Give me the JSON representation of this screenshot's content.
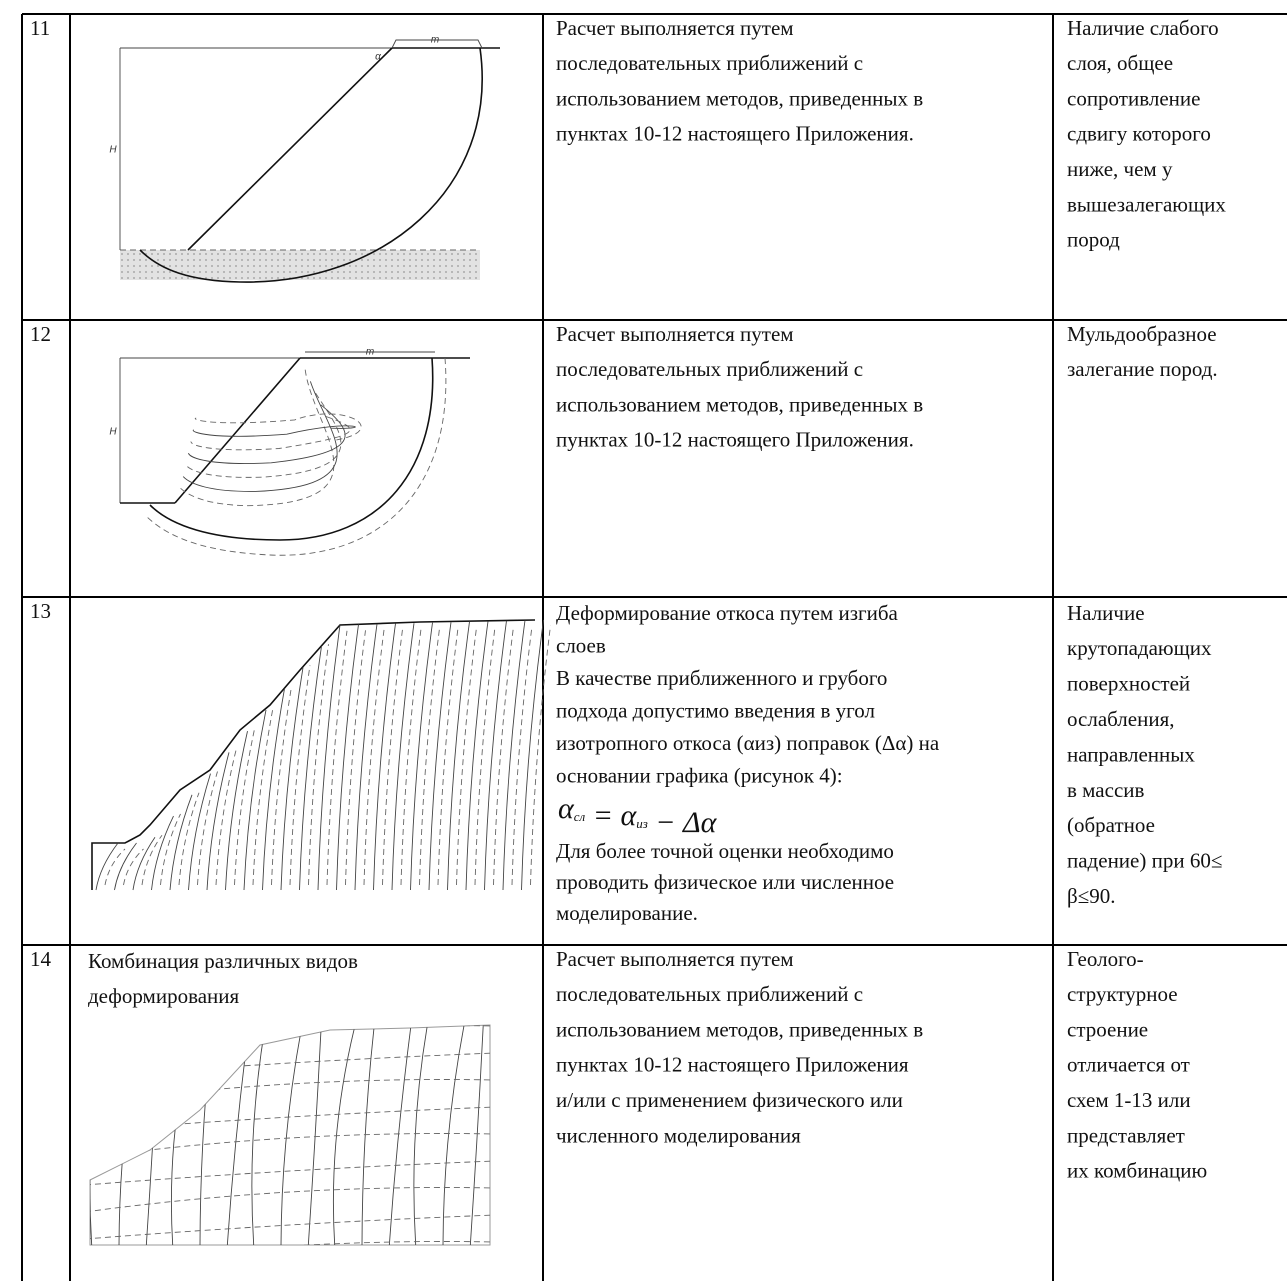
{
  "table": {
    "rows": [
      {
        "number": "11",
        "figure_labels": [
          "m",
          "H",
          "α"
        ],
        "description": [
          "Расчет выполняется путем",
          "последовательных приближений с",
          "использованием методов, приведенных в",
          "пунктах 10-12 настоящего Приложения."
        ],
        "condition": [
          "Наличие слабого",
          "слоя, общее",
          "сопротивление",
          "сдвигу которого",
          "ниже, чем у",
          "вышезалегающих",
          "пород"
        ]
      },
      {
        "number": "12",
        "figure_labels": [
          "m",
          "H"
        ],
        "description": [
          "Расчет выполняется путем",
          "последовательных приближений с",
          "использованием методов, приведенных в",
          "пунктах 10-12 настоящего Приложения."
        ],
        "condition": [
          "Мульдообразное",
          "залегание пород."
        ]
      },
      {
        "number": "13",
        "description": [
          "Деформирование откоса путем изгиба",
          "слоев",
          "В качестве приближенного и грубого",
          "подхода допустимо введения в угол",
          "изотропного откоса (αиз) поправок (Δα) на",
          "основании графика (рисунок 4):"
        ],
        "formula": [
          {
            "text": "α",
            "sub": "сл"
          },
          {
            "text": " = "
          },
          {
            "text": "α",
            "sub": "из"
          },
          {
            "text": " − Δα"
          }
        ],
        "note": [
          "Для более точной оценки необходимо",
          "проводить физическое или численное",
          "моделирование."
        ],
        "condition": [
          "Наличие",
          "крутопадающих",
          "поверхностей",
          "ослабления,",
          "направленных",
          "в массив",
          "(обратное",
          "падение) при 60≤",
          "β≤90."
        ]
      },
      {
        "number": "14",
        "figure_caption": [
          "Комбинация различных видов",
          "деформирования"
        ],
        "description": [
          "Расчет выполняется путем",
          "последовательных приближений с",
          "использованием методов, приведенных в",
          "пунктах 10-12 настоящего Приложения",
          "и/или с применением физического или",
          "численного моделирования"
        ],
        "condition": [
          "Геолого-",
          "структурное",
          "строение",
          "отличается от",
          "схем 1-13 или",
          "представляет",
          "их комбинацию"
        ]
      }
    ]
  }
}
